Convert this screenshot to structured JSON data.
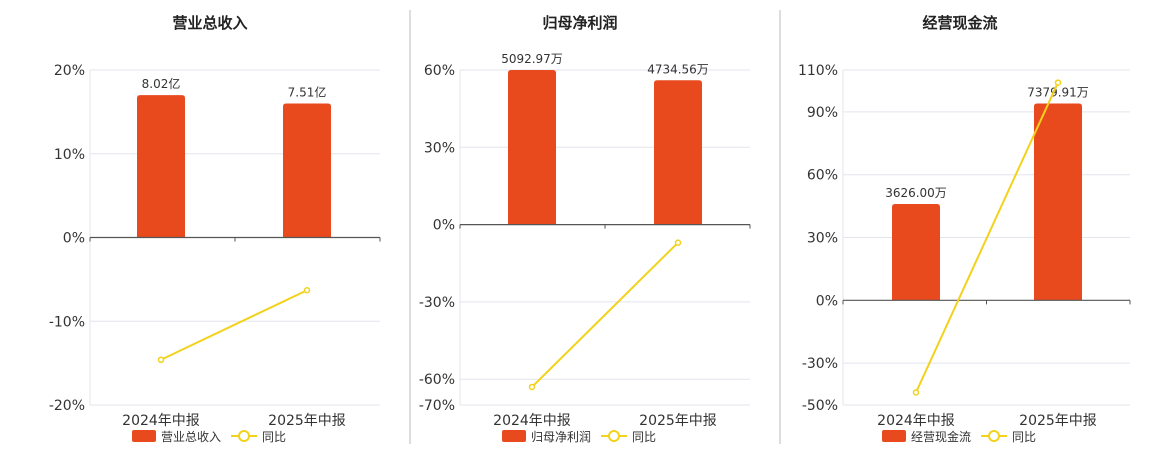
{
  "colors": {
    "bar": "#E84A1E",
    "line": "#F2D21B",
    "grid": "#E3E5EE",
    "axis": "#555555",
    "divider": "#BBBBBB"
  },
  "chart_data": [
    {
      "type": "bar+line",
      "title": "营业总收入",
      "categories": [
        "2024年中报",
        "2025年中报"
      ],
      "bar_series": {
        "name": "营业总收入",
        "label_values": [
          "8.02亿",
          "7.51亿"
        ],
        "values_pct": [
          17,
          16
        ]
      },
      "line_series": {
        "name": "同比",
        "values": [
          -14.6,
          -6.3
        ]
      },
      "y_ticks": [
        -20,
        -10,
        0,
        10,
        20
      ],
      "y_tick_labels": [
        "-20%",
        "-10%",
        "0%",
        "10%",
        "20%"
      ],
      "ylim": [
        -20,
        20
      ]
    },
    {
      "type": "bar+line",
      "title": "归母净利润",
      "categories": [
        "2024年中报",
        "2025年中报"
      ],
      "bar_series": {
        "name": "归母净利润",
        "label_values": [
          "5092.97万",
          "4734.56万"
        ],
        "values_pct": [
          60,
          56
        ]
      },
      "line_series": {
        "name": "同比",
        "values": [
          -63,
          -7
        ]
      },
      "y_ticks": [
        -70,
        -60,
        -30,
        0,
        30,
        60
      ],
      "y_tick_labels": [
        "-70%",
        "-60%",
        "-30%",
        "0%",
        "30%",
        "60%"
      ],
      "ylim": [
        -70,
        60
      ]
    },
    {
      "type": "bar+line",
      "title": "经营现金流",
      "categories": [
        "2024年中报",
        "2025年中报"
      ],
      "bar_series": {
        "name": "经营现金流",
        "label_values": [
          "3626.00万",
          "7379.91万"
        ],
        "values_pct": [
          46,
          94
        ]
      },
      "line_series": {
        "name": "同比",
        "values": [
          -44,
          104
        ]
      },
      "y_ticks": [
        -50,
        -30,
        0,
        30,
        60,
        90,
        110
      ],
      "y_tick_labels": [
        "-50%",
        "-30%",
        "0%",
        "30%",
        "60%",
        "90%",
        "110%"
      ],
      "ylim": [
        -50,
        110
      ]
    }
  ]
}
